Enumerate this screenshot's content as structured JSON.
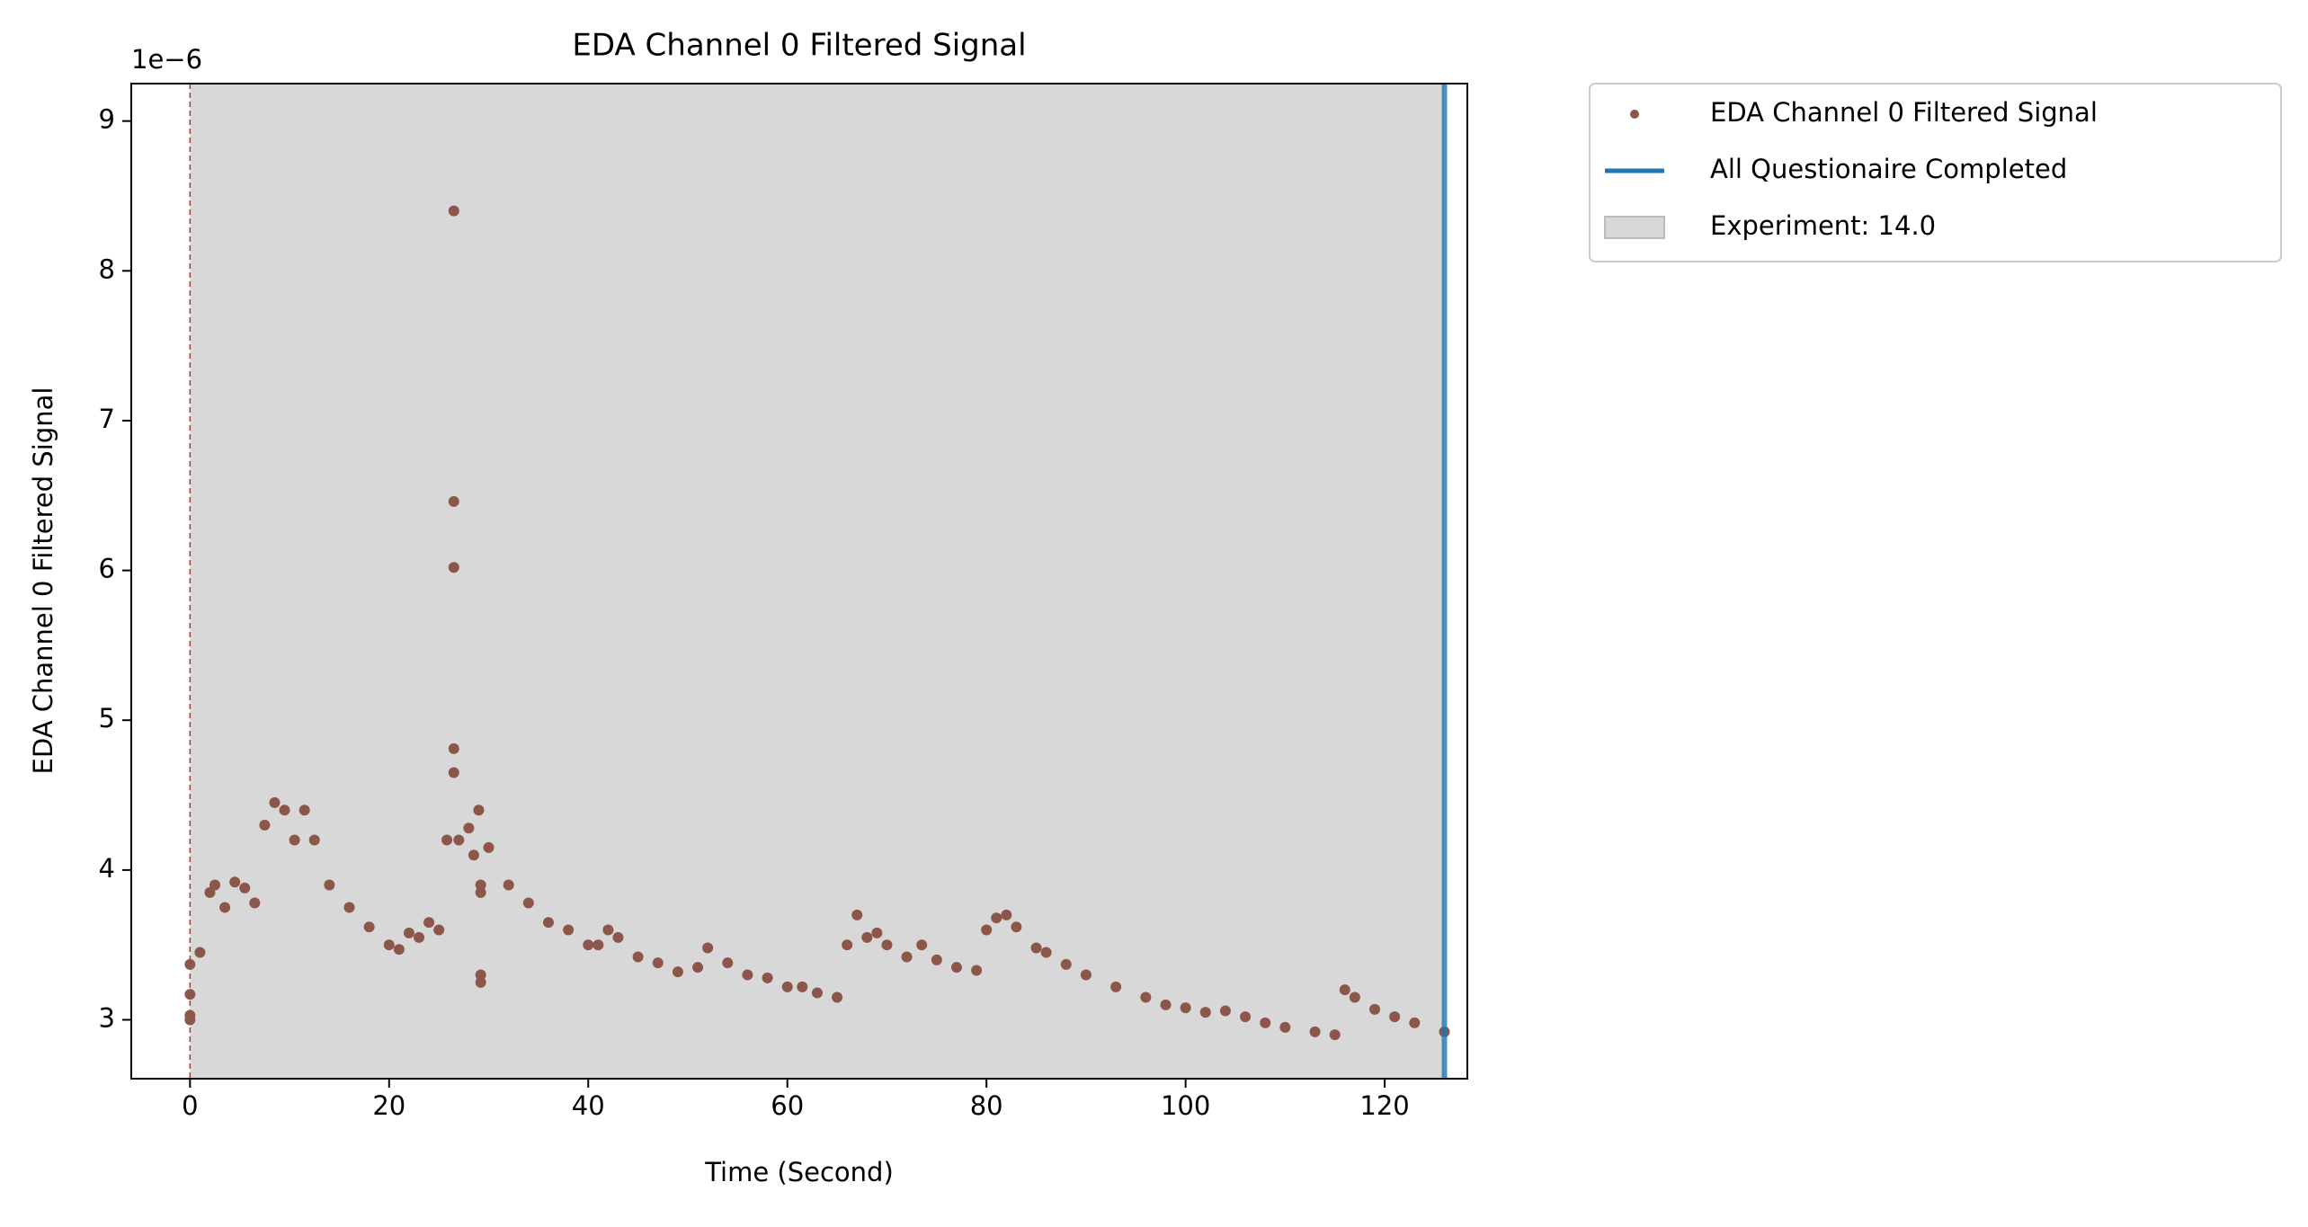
{
  "chart_data": {
    "type": "scatter",
    "title": "EDA Channel 0 Filtered Signal",
    "x_label": "Time (Second)",
    "y_label": "EDA Channel 0 Filtered Signal",
    "y_offset_label": "1e−6",
    "x": [
      0,
      0,
      0,
      0,
      1,
      2,
      2.5,
      3.5,
      4.5,
      5.5,
      6.5,
      7.5,
      8.5,
      9.5,
      10.5,
      11.5,
      12.5,
      14,
      16,
      18,
      20,
      21,
      22,
      23,
      24,
      25,
      25.8,
      26.5,
      26.5,
      26.5,
      26.5,
      26.5,
      27,
      28,
      28.5,
      29,
      29.2,
      29.2,
      29.2,
      29.2,
      30,
      32,
      34,
      36,
      38,
      40,
      41,
      42,
      43,
      45,
      47,
      49,
      51,
      52,
      54,
      56,
      58,
      60,
      61.5,
      63,
      65,
      66,
      67,
      68,
      69,
      70,
      72,
      73.5,
      75,
      77,
      79,
      80,
      81,
      82,
      83,
      85,
      86,
      88,
      90,
      93,
      96,
      98,
      100,
      102,
      104,
      106,
      108,
      110,
      113,
      115,
      116,
      117,
      119,
      121,
      123,
      126
    ],
    "series": [
      {
        "name": "EDA Channel 0 Filtered Signal",
        "color": "#8c564b",
        "values": [
          3.37,
          3.0,
          3.03,
          3.17,
          3.45,
          3.85,
          3.9,
          3.75,
          3.92,
          3.88,
          3.78,
          4.3,
          4.45,
          4.4,
          4.2,
          4.4,
          4.2,
          3.9,
          3.75,
          3.62,
          3.5,
          3.47,
          3.58,
          3.55,
          3.65,
          3.6,
          4.2,
          4.65,
          8.4,
          6.46,
          6.02,
          4.81,
          4.2,
          4.28,
          4.1,
          4.4,
          3.9,
          3.85,
          3.3,
          3.25,
          4.15,
          3.9,
          3.78,
          3.65,
          3.6,
          3.5,
          3.5,
          3.6,
          3.55,
          3.42,
          3.38,
          3.32,
          3.35,
          3.48,
          3.38,
          3.3,
          3.28,
          3.22,
          3.22,
          3.18,
          3.15,
          3.5,
          3.7,
          3.55,
          3.58,
          3.5,
          3.42,
          3.5,
          3.4,
          3.35,
          3.33,
          3.6,
          3.68,
          3.7,
          3.62,
          3.48,
          3.45,
          3.37,
          3.3,
          3.22,
          3.15,
          3.1,
          3.08,
          3.05,
          3.06,
          3.02,
          2.98,
          2.95,
          2.92,
          2.9,
          3.2,
          3.15,
          3.07,
          3.02,
          2.98,
          2.92
        ]
      }
    ],
    "start_line": {
      "x": 0,
      "color": "#d62728"
    },
    "end_line": {
      "name": "All Questionaire Completed",
      "x": 126,
      "color": "#1f77b4"
    },
    "span": {
      "name": "Experiment: 14.0",
      "range": [
        0,
        126
      ],
      "color": "#d8d8d8"
    },
    "xlim": [
      -5.9,
      128.3
    ],
    "ylim": [
      2.607,
      9.25
    ],
    "xticks": [
      0,
      20,
      40,
      60,
      80,
      100,
      120
    ],
    "yticks": [
      3,
      4,
      5,
      6,
      7,
      8,
      9
    ],
    "legend": "outside upper right"
  }
}
